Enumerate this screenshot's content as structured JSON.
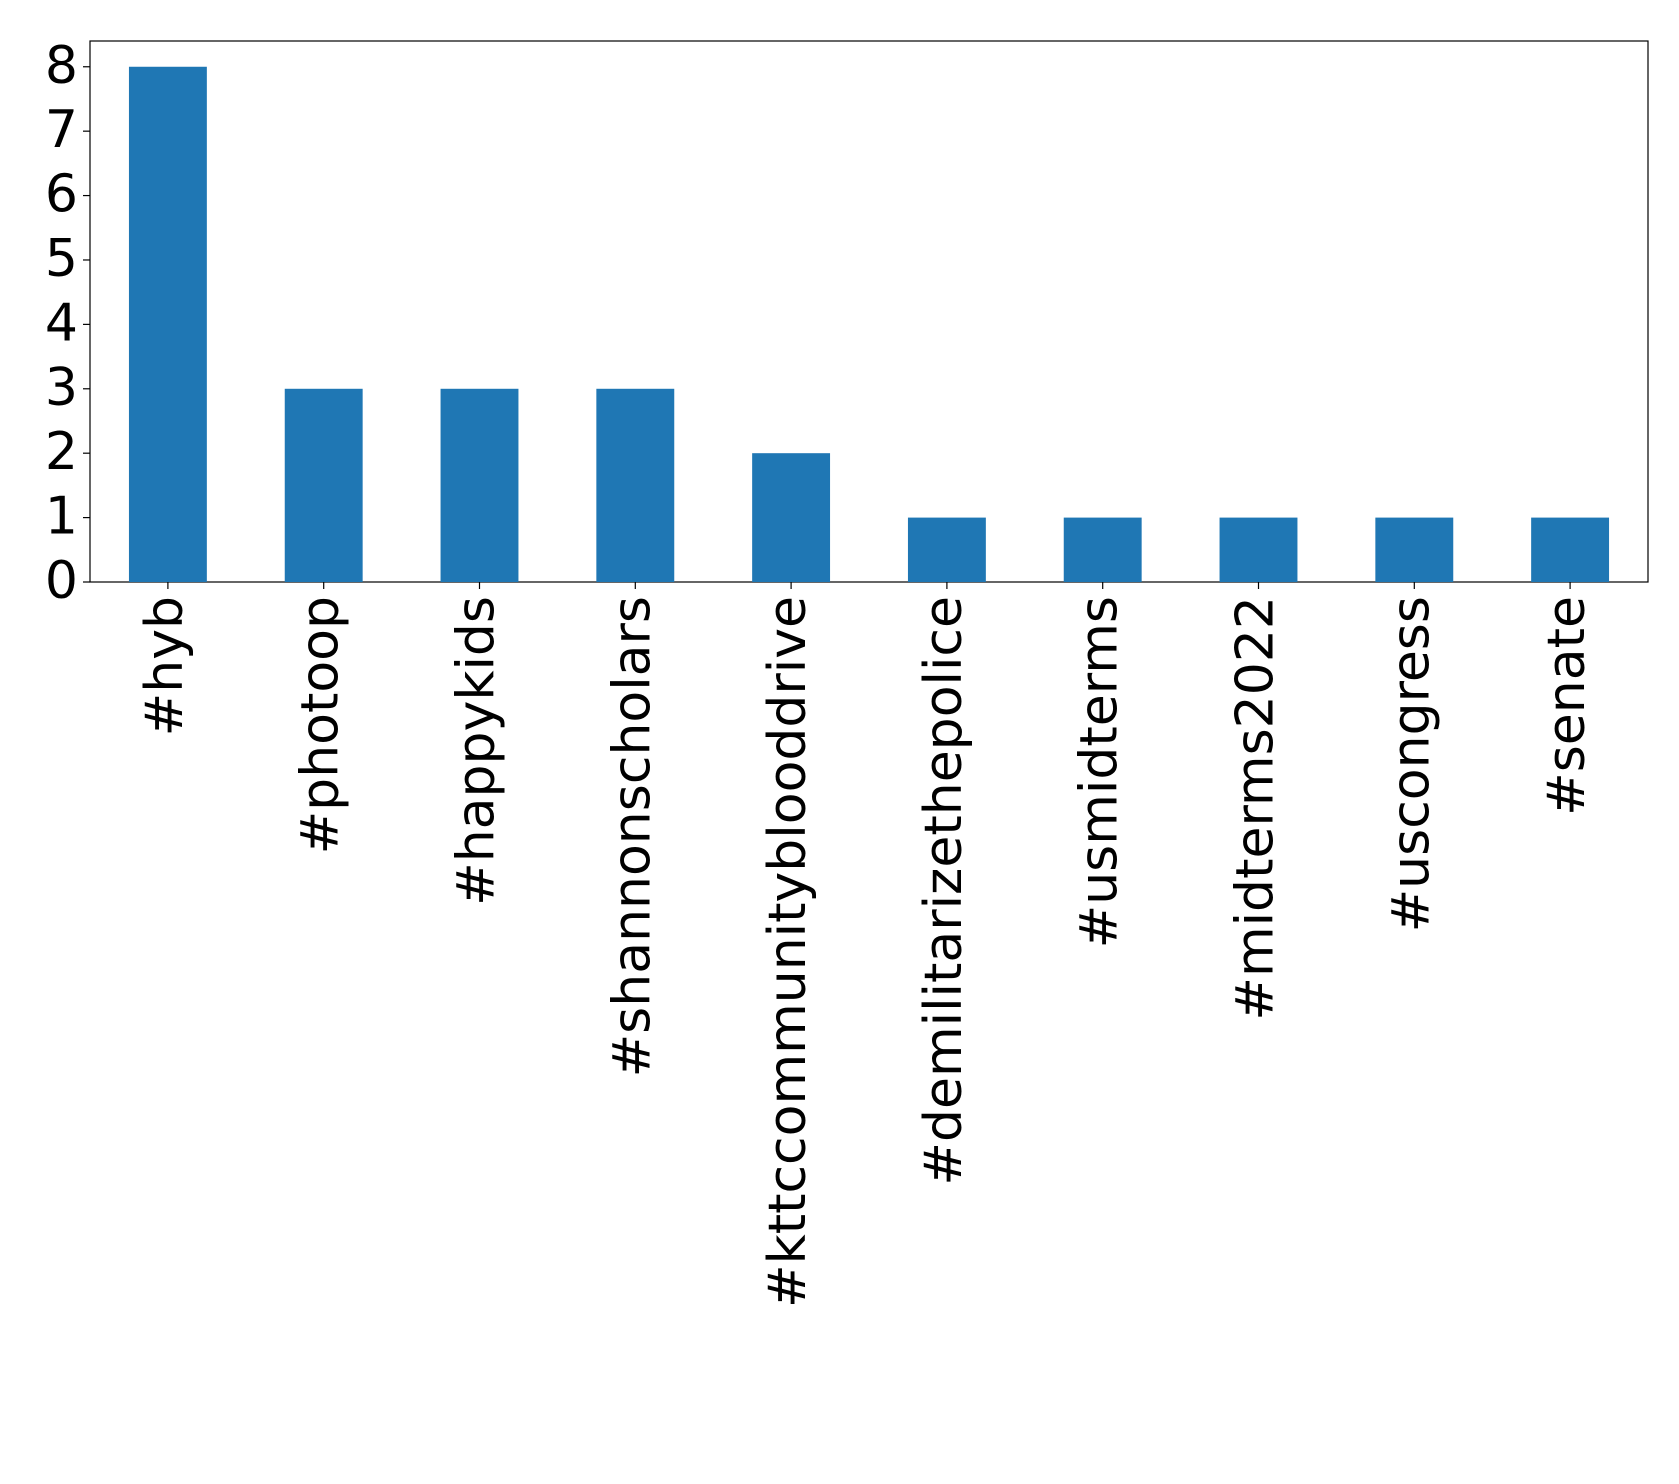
{
  "chart_data": {
    "type": "bar",
    "categories": [
      "#hyb",
      "#photoop",
      "#happykids",
      "#shannonscholars",
      "#kttccommunityblooddrive",
      "#demilitarizethepolice",
      "#usmidterms",
      "#midterms2022",
      "#uscongress",
      "#senate"
    ],
    "values": [
      8,
      3,
      3,
      3,
      2,
      1,
      1,
      1,
      1,
      1
    ],
    "color": "#1f77b4",
    "ylim": [
      0,
      8.4
    ],
    "yticks": [
      0,
      1,
      2,
      3,
      4,
      5,
      6,
      7,
      8
    ],
    "grid": false
  }
}
